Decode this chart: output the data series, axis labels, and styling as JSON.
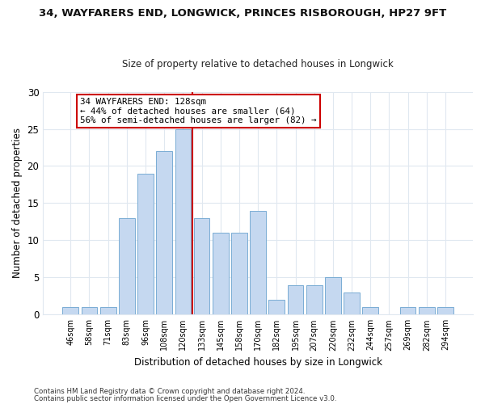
{
  "title1": "34, WAYFARERS END, LONGWICK, PRINCES RISBOROUGH, HP27 9FT",
  "title2": "Size of property relative to detached houses in Longwick",
  "xlabel": "Distribution of detached houses by size in Longwick",
  "ylabel": "Number of detached properties",
  "categories": [
    "46sqm",
    "58sqm",
    "71sqm",
    "83sqm",
    "96sqm",
    "108sqm",
    "120sqm",
    "133sqm",
    "145sqm",
    "158sqm",
    "170sqm",
    "182sqm",
    "195sqm",
    "207sqm",
    "220sqm",
    "232sqm",
    "244sqm",
    "257sqm",
    "269sqm",
    "282sqm",
    "294sqm"
  ],
  "values": [
    1,
    1,
    1,
    13,
    19,
    22,
    25,
    13,
    11,
    11,
    14,
    2,
    4,
    4,
    5,
    3,
    1,
    0,
    1,
    1,
    1
  ],
  "bar_color": "#c5d8f0",
  "bar_edge_color": "#7aadd4",
  "vline_color": "#cc0000",
  "annotation_text": "34 WAYFARERS END: 128sqm\n← 44% of detached houses are smaller (64)\n56% of semi-detached houses are larger (82) →",
  "annotation_box_color": "#ffffff",
  "annotation_box_edge": "#cc0000",
  "ylim": [
    0,
    30
  ],
  "yticks": [
    0,
    5,
    10,
    15,
    20,
    25,
    30
  ],
  "footer1": "Contains HM Land Registry data © Crown copyright and database right 2024.",
  "footer2": "Contains public sector information licensed under the Open Government Licence v3.0.",
  "bg_color": "#ffffff",
  "plot_bg_color": "#ffffff",
  "grid_color": "#e0e8f0"
}
